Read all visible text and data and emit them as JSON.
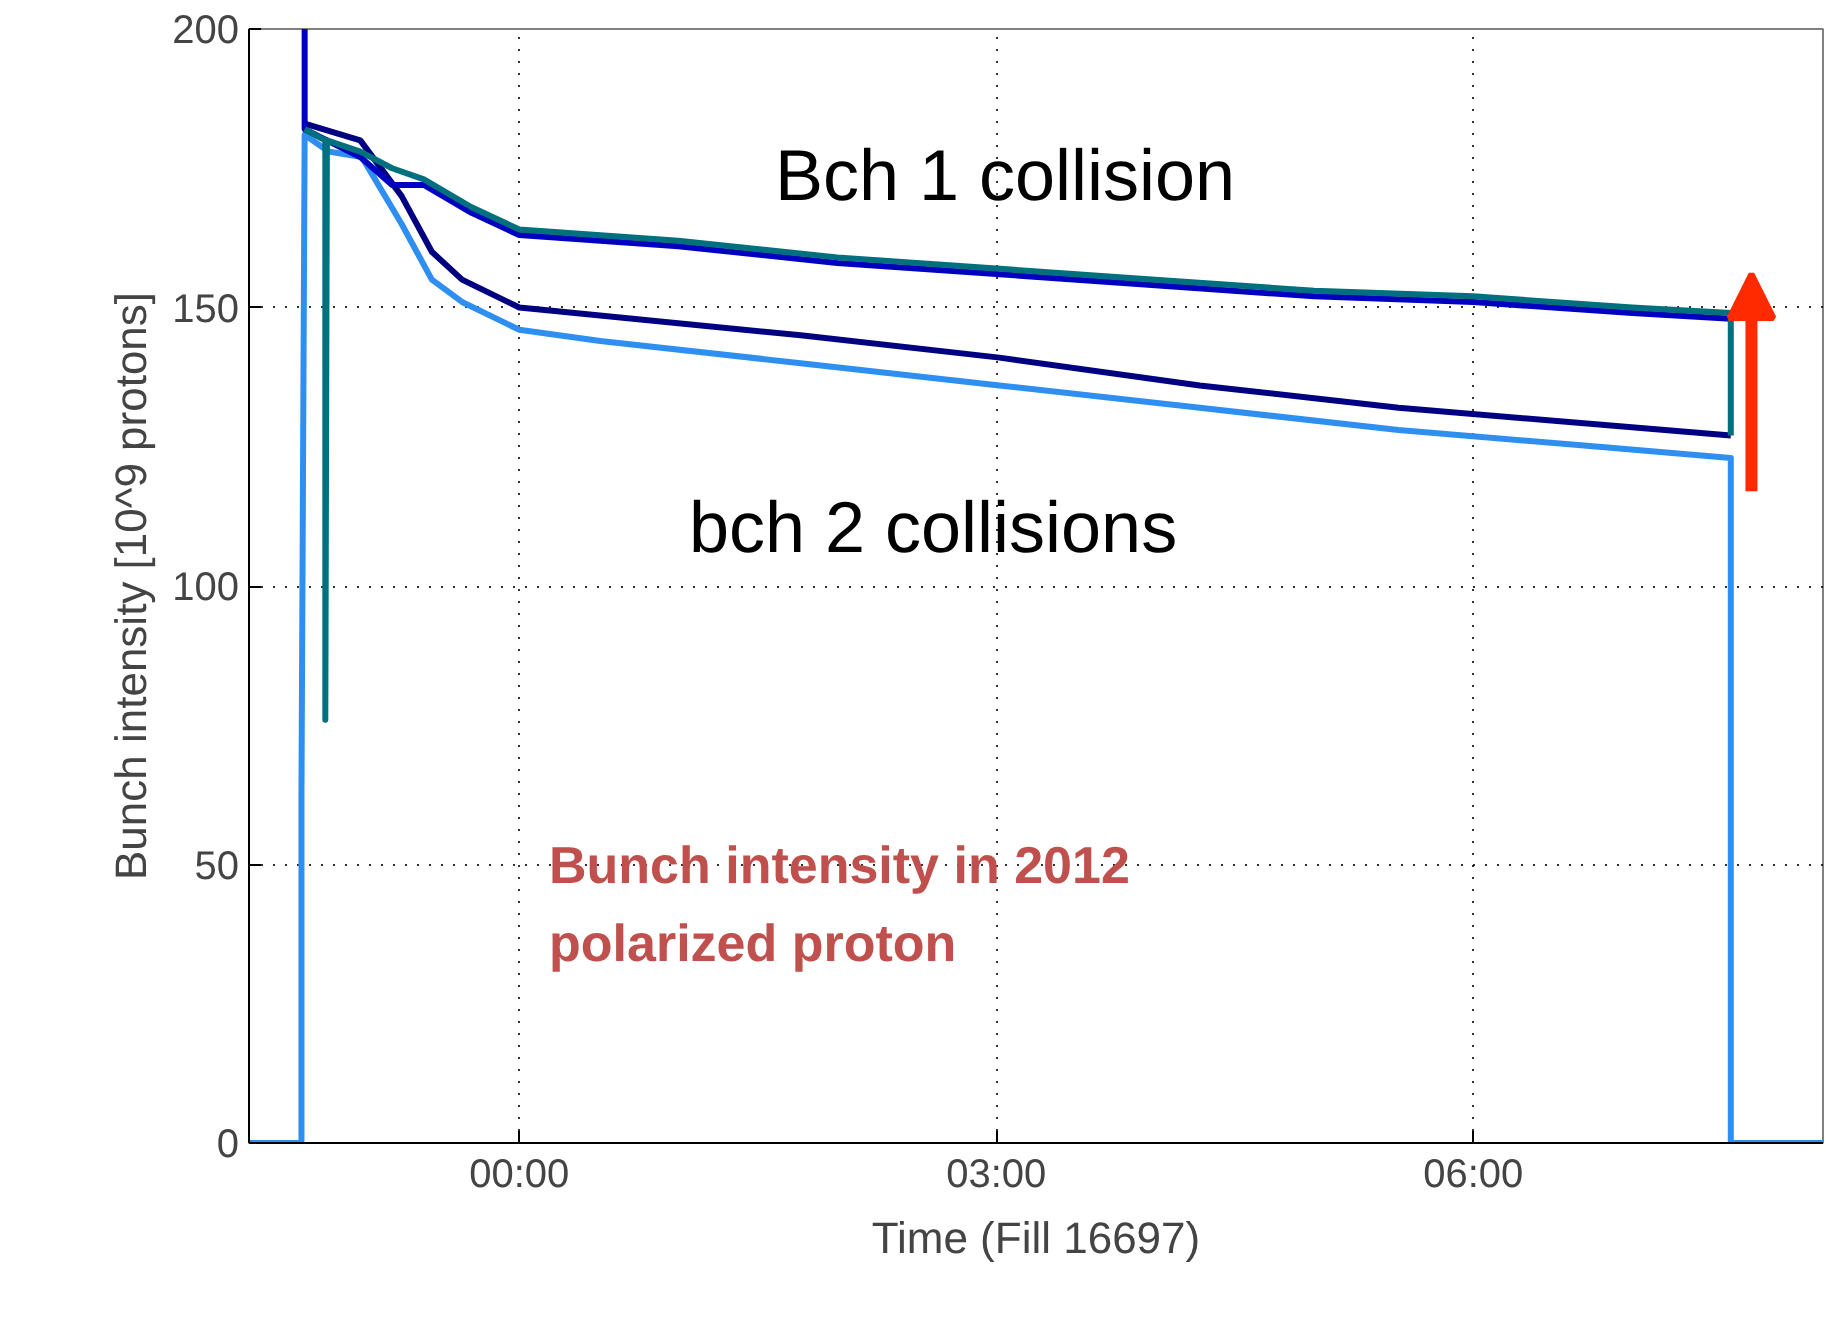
{
  "chart_data": {
    "type": "line",
    "xlabel": "Time (Fill 16697)",
    "ylabel": "Bunch intensity [10^9 protons]",
    "xlim": [
      -1.7,
      8.2
    ],
    "ylim": [
      0,
      200
    ],
    "xticks": [
      {
        "value": 0,
        "label": "00:00"
      },
      {
        "value": 3,
        "label": "03:00"
      },
      {
        "value": 6,
        "label": "06:00"
      }
    ],
    "yticks": [
      0,
      50,
      100,
      150,
      200
    ],
    "grid": true,
    "line_style": "solid",
    "series": [
      {
        "color": "#2e8ff0",
        "x": [
          -1.7,
          -1.37,
          -1.37,
          -1.35,
          -1.2,
          -0.99,
          -0.74,
          -0.55,
          -0.36,
          0,
          0.51,
          1.77,
          3.02,
          4.28,
          5.53,
          6.79,
          7.62,
          7.62,
          8.2
        ],
        "values": [
          0,
          0,
          63,
          181,
          178,
          177,
          165,
          155,
          151,
          146,
          144,
          140,
          136,
          132,
          128,
          125,
          123,
          0,
          0
        ]
      },
      {
        "color": "#000080",
        "x": [
          -1.35,
          -1.35,
          -1.0,
          -0.74,
          -0.55,
          -0.36,
          0,
          1.77,
          3.02,
          4.28,
          5.53,
          6.79,
          7.62
        ],
        "values": [
          183,
          183,
          180,
          170,
          160,
          155,
          150,
          145,
          141,
          136,
          132,
          129,
          127
        ]
      },
      {
        "color": "#0000c0",
        "x": [
          -1.35,
          -1.35,
          -1.0,
          -0.8,
          -0.6,
          -0.3,
          0,
          1,
          2,
          3,
          4,
          5,
          6,
          7,
          7.62
        ],
        "values": [
          200,
          182,
          177,
          172,
          172,
          167,
          163,
          161,
          158,
          156,
          154,
          152,
          151,
          149,
          148
        ]
      },
      {
        "color": "#00707f",
        "x": [
          -1.35,
          -1.22,
          -1.22,
          -1.21,
          -1.0,
          -0.8,
          -0.6,
          -0.3,
          0,
          1,
          2,
          3,
          4,
          5,
          6,
          7,
          7.62,
          7.62
        ],
        "values": [
          182,
          180,
          76,
          180,
          178,
          175,
          173,
          168,
          164,
          162,
          159,
          157,
          155,
          153,
          152,
          150,
          149,
          127
        ]
      }
    ],
    "annotations": [
      "Bch 1 collision",
      "bch 2 collisions",
      "Bunch intensity in 2012\npolarized proton"
    ]
  }
}
